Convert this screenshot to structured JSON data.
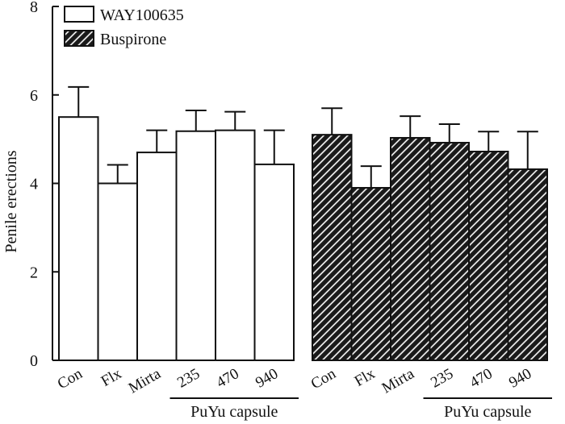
{
  "chart_data": {
    "type": "bar",
    "title": "",
    "xlabel": "",
    "ylabel": "Penile erections",
    "ylim": [
      0,
      8
    ],
    "yticks": [
      0,
      2,
      4,
      6,
      8
    ],
    "grid": false,
    "legend_position": "top-left",
    "categories": [
      "Con",
      "Flx",
      "Mirta",
      "235",
      "470",
      "940"
    ],
    "group_label": "PuYu capsule",
    "group_label_categories": [
      "235",
      "470",
      "940"
    ],
    "series": [
      {
        "name": "WAY100635",
        "fill": "white",
        "values": [
          5.5,
          4.0,
          4.7,
          5.18,
          5.2,
          4.43
        ],
        "errors": [
          0.68,
          0.42,
          0.5,
          0.47,
          0.42,
          0.77
        ]
      },
      {
        "name": "Buspirone",
        "fill": "hatched",
        "values": [
          5.1,
          3.9,
          5.03,
          4.92,
          4.72,
          4.32
        ],
        "errors": [
          0.6,
          0.49,
          0.49,
          0.42,
          0.45,
          0.85
        ]
      }
    ]
  },
  "colors": {
    "axis": "#111111",
    "bar_stroke": "#111111",
    "hatch_background": "#1a1a1a",
    "hatch_line": "#ffffff",
    "white_bar": "#ffffff"
  }
}
